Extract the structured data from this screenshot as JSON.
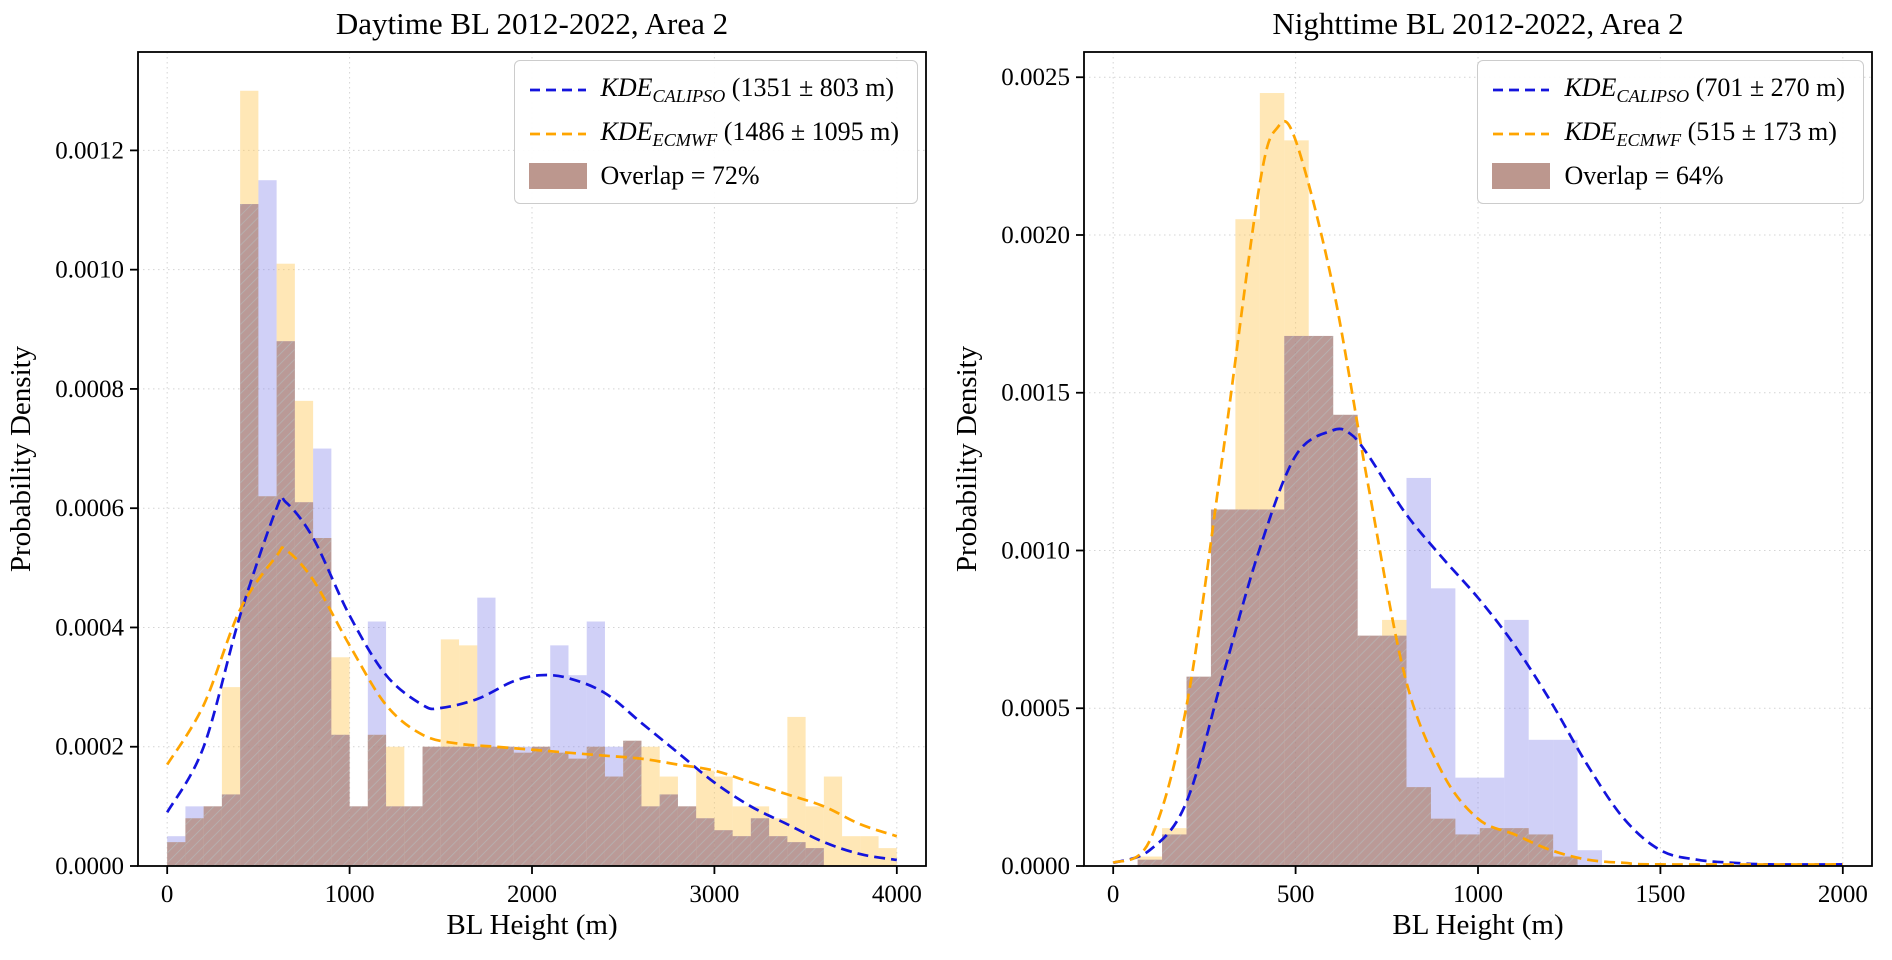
{
  "figure": {
    "background": "#ffffff"
  },
  "colors": {
    "calipso_line": "#1414dd",
    "ecmwf_line": "#ffa500",
    "calipso_fill": "#8a8aec",
    "ecmwf_fill": "#ffc95e",
    "overlap_fill": "#a06a58",
    "legend_patch": "#bc978e",
    "hatch": "#b5b5b5",
    "grid": "#d4d4d4",
    "axis": "#000000",
    "legend_border": "#cccccc"
  },
  "chart_data": [
    {
      "id": "daytime",
      "type": "histogram+kde",
      "title": "Daytime BL 2012-2022, Area 2",
      "xlabel": "BL Height (m)",
      "ylabel": "Probability Density",
      "xlim": [
        -160,
        4160
      ],
      "ylim": [
        0,
        0.001365
      ],
      "xticks": [
        0,
        1000,
        2000,
        3000,
        4000
      ],
      "xtick_labels": [
        "0",
        "1000",
        "2000",
        "3000",
        "4000"
      ],
      "yticks": [
        0,
        0.0002,
        0.0004,
        0.0006,
        0.0008,
        0.001,
        0.0012
      ],
      "ytick_labels": [
        "0.0000",
        "0.0002",
        "0.0004",
        "0.0006",
        "0.0008",
        "0.0010",
        "0.0012"
      ],
      "grid": true,
      "bins": {
        "start": 0,
        "width": 100
      },
      "series": [
        {
          "name": "CALIPSO histogram",
          "values": [
            5e-05,
            0.0001,
            0.0001,
            0.00012,
            0.00111,
            0.00115,
            0.00088,
            0.00061,
            0.0007,
            0.00022,
            0.0001,
            0.00041,
            0.0001,
            0.0001,
            0.0002,
            0.0002,
            0.0002,
            0.00045,
            0.0002,
            0.0002,
            0.0002,
            0.00037,
            0.00032,
            0.00041,
            0.0002,
            0.00021,
            0.0001,
            0.00012,
            0.0001,
            8e-05,
            6e-05,
            5e-05,
            8e-05,
            5e-05,
            4e-05,
            3e-05,
            0,
            0,
            0,
            0
          ]
        },
        {
          "name": "ECMWF histogram",
          "values": [
            4e-05,
            8e-05,
            0.0001,
            0.0003,
            0.0013,
            0.00062,
            0.00101,
            0.00078,
            0.00055,
            0.00035,
            0.0001,
            0.00022,
            0.0002,
            0.0001,
            0.0002,
            0.00038,
            0.00037,
            0.0002,
            0.0002,
            0.00019,
            0.0002,
            0.00019,
            0.00018,
            0.0002,
            0.00015,
            0.00021,
            0.0002,
            0.00015,
            0.0001,
            0.00016,
            0.00015,
            0.0001,
            0.0001,
            8e-05,
            0.00025,
            0.0001,
            0.00015,
            5e-05,
            5e-05,
            3e-05
          ]
        }
      ],
      "kde": [
        {
          "name": "KDE CALIPSO",
          "points": [
            [
              0,
              9e-05
            ],
            [
              200,
              0.0002
            ],
            [
              400,
              0.00042
            ],
            [
              600,
              0.0006
            ],
            [
              650,
              0.00061
            ],
            [
              800,
              0.00055
            ],
            [
              1000,
              0.00042
            ],
            [
              1200,
              0.00032
            ],
            [
              1400,
              0.00027
            ],
            [
              1500,
              0.000265
            ],
            [
              1700,
              0.00028
            ],
            [
              1900,
              0.00031
            ],
            [
              2050,
              0.00032
            ],
            [
              2200,
              0.000315
            ],
            [
              2400,
              0.00029
            ],
            [
              2600,
              0.00024
            ],
            [
              2800,
              0.00019
            ],
            [
              3000,
              0.00014
            ],
            [
              3200,
              0.0001
            ],
            [
              3400,
              7e-05
            ],
            [
              3600,
              4e-05
            ],
            [
              3800,
              2e-05
            ],
            [
              4000,
              1e-05
            ]
          ]
        },
        {
          "name": "KDE ECMWF",
          "points": [
            [
              0,
              0.00017
            ],
            [
              200,
              0.00027
            ],
            [
              400,
              0.00043
            ],
            [
              600,
              0.00052
            ],
            [
              650,
              0.00053
            ],
            [
              800,
              0.00048
            ],
            [
              1000,
              0.00037
            ],
            [
              1200,
              0.00027
            ],
            [
              1400,
              0.00022
            ],
            [
              1600,
              0.000205
            ],
            [
              1800,
              0.0002
            ],
            [
              2000,
              0.000195
            ],
            [
              2200,
              0.00019
            ],
            [
              2400,
              0.000185
            ],
            [
              2600,
              0.00018
            ],
            [
              2800,
              0.00017
            ],
            [
              3000,
              0.00016
            ],
            [
              3200,
              0.00014
            ],
            [
              3400,
              0.00012
            ],
            [
              3600,
              0.0001
            ],
            [
              3800,
              7e-05
            ],
            [
              4000,
              5e-05
            ]
          ]
        }
      ],
      "legend": [
        {
          "kind": "line",
          "series": "calipso",
          "text_kde": "KDE",
          "text_sub": "CALIPSO",
          "text_stat": " (1351 ± 803 m)"
        },
        {
          "kind": "line",
          "series": "ecmwf",
          "text_kde": "KDE",
          "text_sub": "ECMWF",
          "text_stat": " (1486 ± 1095 m)"
        },
        {
          "kind": "patch",
          "text": "Overlap = 72%"
        }
      ]
    },
    {
      "id": "nighttime",
      "type": "histogram+kde",
      "title": "Nighttime BL 2012-2022, Area 2",
      "xlabel": "BL Height (m)",
      "ylabel": "Probability Density",
      "xlim": [
        -80,
        2080
      ],
      "ylim": [
        0,
        0.00258
      ],
      "xticks": [
        0,
        500,
        1000,
        1500,
        2000
      ],
      "xtick_labels": [
        "0",
        "500",
        "1000",
        "1500",
        "2000"
      ],
      "yticks": [
        0,
        0.0005,
        0.001,
        0.0015,
        0.002,
        0.0025
      ],
      "ytick_labels": [
        "0.0000",
        "0.0005",
        "0.0010",
        "0.0015",
        "0.0020",
        "0.0025"
      ],
      "grid": true,
      "bins": {
        "start": 0,
        "width": 67
      },
      "series": [
        {
          "name": "CALIPSO histogram",
          "values": [
            0,
            2e-05,
            0.0001,
            0.0006,
            0.00113,
            0.00113,
            0.00113,
            0.00168,
            0.00168,
            0.00143,
            0.00073,
            0.00073,
            0.00123,
            0.00088,
            0.00028,
            0.00028,
            0.00078,
            0.0004,
            0.0004,
            5e-05,
            0,
            0,
            0,
            0,
            0,
            0,
            0,
            0,
            0,
            0
          ]
        },
        {
          "name": "ECMWF histogram",
          "values": [
            0,
            3e-05,
            0.00012,
            0.0006,
            0.00113,
            0.00205,
            0.00245,
            0.0023,
            0.00168,
            0.00143,
            0.00073,
            0.00078,
            0.00025,
            0.00015,
            0.0001,
            0.00012,
            0.00012,
            0.0001,
            3e-05,
            0,
            0,
            0,
            0,
            0,
            0,
            0,
            0,
            0,
            0,
            0
          ]
        }
      ],
      "kde": [
        {
          "name": "KDE CALIPSO",
          "points": [
            [
              0,
              1e-05
            ],
            [
              100,
              5e-05
            ],
            [
              200,
              0.0002
            ],
            [
              300,
              0.0006
            ],
            [
              400,
              0.001
            ],
            [
              500,
              0.0013
            ],
            [
              600,
              0.00138
            ],
            [
              650,
              0.00137
            ],
            [
              700,
              0.0013
            ],
            [
              800,
              0.00112
            ],
            [
              900,
              0.00098
            ],
            [
              1000,
              0.00085
            ],
            [
              1100,
              0.0007
            ],
            [
              1200,
              0.00052
            ],
            [
              1300,
              0.00032
            ],
            [
              1400,
              0.00015
            ],
            [
              1500,
              5e-05
            ],
            [
              1600,
              2e-05
            ],
            [
              1700,
              1e-05
            ],
            [
              1800,
              5e-06
            ],
            [
              2000,
              5e-06
            ]
          ]
        },
        {
          "name": "KDE ECMWF",
          "points": [
            [
              0,
              1e-05
            ],
            [
              100,
              8e-05
            ],
            [
              200,
              0.0005
            ],
            [
              300,
              0.0013
            ],
            [
              400,
              0.00215
            ],
            [
              450,
              0.00234
            ],
            [
              500,
              0.0023
            ],
            [
              600,
              0.00185
            ],
            [
              700,
              0.0012
            ],
            [
              800,
              0.0006
            ],
            [
              900,
              0.0003
            ],
            [
              1000,
              0.00015
            ],
            [
              1100,
              0.0001
            ],
            [
              1200,
              5e-05
            ],
            [
              1300,
              2e-05
            ],
            [
              1400,
              1e-05
            ],
            [
              1500,
              5e-06
            ],
            [
              2000,
              5e-06
            ]
          ]
        }
      ],
      "legend": [
        {
          "kind": "line",
          "series": "calipso",
          "text_kde": "KDE",
          "text_sub": "CALIPSO",
          "text_stat": " (701 ± 270 m)"
        },
        {
          "kind": "line",
          "series": "ecmwf",
          "text_kde": "KDE",
          "text_sub": "ECMWF",
          "text_stat": " (515 ± 173 m)"
        },
        {
          "kind": "patch",
          "text": "Overlap = 64%"
        }
      ]
    }
  ]
}
